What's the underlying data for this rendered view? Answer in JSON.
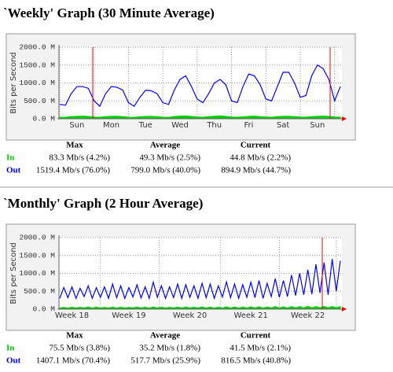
{
  "chart_data": [
    {
      "type": "line",
      "title": "`Weekly' Graph (30 Minute Average)",
      "y_label": "Bits per Second",
      "categories": [
        null,
        null,
        null,
        "Sun",
        null,
        null,
        null,
        null,
        null,
        "Mon",
        null,
        null,
        null,
        null,
        null,
        "Tue",
        null,
        null,
        null,
        null,
        null,
        "Wed",
        null,
        null,
        null,
        null,
        null,
        "Thu",
        null,
        null,
        null,
        null,
        null,
        "Fri",
        null,
        null,
        null,
        null,
        null,
        "Sat",
        null,
        null,
        null,
        null,
        null,
        "Sun",
        null,
        null,
        null,
        null
      ],
      "ylim": [
        0,
        2000
      ],
      "yticks": [
        {
          "value": 0,
          "label": "0.0 M"
        },
        {
          "value": 500,
          "label": "500.0 M"
        },
        {
          "value": 1000,
          "label": "1000.0 M"
        },
        {
          "value": 1500,
          "label": "1500.0 M"
        },
        {
          "value": 2000,
          "label": "2000.0 M"
        }
      ],
      "grid": true,
      "series": [
        {
          "name": "In",
          "color": "#00cc00",
          "values": [
            40,
            45,
            60,
            70,
            75,
            65,
            50,
            45,
            60,
            70,
            72,
            60,
            45,
            40,
            55,
            65,
            70,
            60,
            45,
            42,
            60,
            75,
            80,
            65,
            50,
            45,
            60,
            72,
            83,
            65,
            50,
            45,
            55,
            70,
            75,
            60,
            50,
            45,
            60,
            70,
            72,
            60,
            50,
            48,
            60,
            70,
            75,
            65,
            50,
            48
          ]
        },
        {
          "name": "Out",
          "color": "#0000ff",
          "values": [
            400,
            380,
            700,
            900,
            900,
            850,
            500,
            350,
            700,
            900,
            880,
            800,
            450,
            350,
            600,
            800,
            780,
            700,
            450,
            400,
            800,
            1100,
            1200,
            900,
            550,
            450,
            700,
            1000,
            1100,
            950,
            500,
            450,
            900,
            1250,
            1200,
            950,
            550,
            500,
            900,
            1300,
            1300,
            1000,
            600,
            650,
            1200,
            1500,
            1400,
            1100,
            500,
            900
          ]
        }
      ],
      "stats": {
        "columns": [
          "Max",
          "Average",
          "Current"
        ],
        "rows": [
          [
            "83.3 Mb/s (4.2%)",
            "49.3 Mb/s (2.5%)",
            "44.8 Mb/s (2.2%)"
          ],
          [
            "1519.4 Mb/s (76.0%)",
            "799.0 Mb/s (40.0%)",
            "894.9 Mb/s (44.7%)"
          ]
        ]
      }
    },
    {
      "type": "line",
      "title": "`Monthly' Graph (2 Hour Average)",
      "y_label": "Bits per Second",
      "categories": [
        null,
        null,
        null,
        "Week 18",
        null,
        null,
        null,
        null,
        null,
        null,
        null,
        null,
        null,
        null,
        null,
        null,
        null,
        "Week 19",
        null,
        null,
        null,
        null,
        null,
        null,
        null,
        null,
        null,
        null,
        null,
        null,
        null,
        null,
        "Week 20",
        null,
        null,
        null,
        null,
        null,
        null,
        null,
        null,
        null,
        null,
        null,
        null,
        null,
        null,
        "Week 21",
        null,
        null,
        null,
        null,
        null,
        null,
        null,
        null,
        null,
        null,
        null,
        null,
        null,
        "Week 22",
        null,
        null,
        null,
        null,
        null,
        null,
        null,
        null
      ],
      "ylim": [
        0,
        2000
      ],
      "yticks": [
        {
          "value": 0,
          "label": "0.0 M"
        },
        {
          "value": 500,
          "label": "500.0 M"
        },
        {
          "value": 1000,
          "label": "1000.0 M"
        },
        {
          "value": 1500,
          "label": "1500.0 M"
        },
        {
          "value": 2000,
          "label": "2000.0 M"
        }
      ],
      "grid": true,
      "series": [
        {
          "name": "In",
          "color": "#00cc00",
          "values": [
            30,
            50,
            28,
            55,
            30,
            52,
            32,
            60,
            30,
            55,
            32,
            50,
            30,
            58,
            28,
            55,
            30,
            50,
            32,
            60,
            30,
            55,
            28,
            62,
            30,
            55,
            30,
            52,
            32,
            58,
            30,
            60,
            32,
            55,
            30,
            62,
            30,
            58,
            28,
            55,
            32,
            65,
            30,
            60,
            30,
            58,
            32,
            62,
            30,
            66,
            28,
            60,
            32,
            70,
            30,
            65,
            32,
            72,
            34,
            70,
            36,
            75,
            35,
            72,
            38,
            75.5,
            36,
            74,
            40,
            70
          ]
        },
        {
          "name": "Out",
          "color": "#0000ff",
          "values": [
            300,
            600,
            320,
            620,
            300,
            580,
            350,
            650,
            300,
            600,
            330,
            620,
            300,
            700,
            320,
            650,
            300,
            600,
            340,
            680,
            310,
            620,
            300,
            750,
            330,
            650,
            300,
            620,
            320,
            700,
            300,
            680,
            330,
            650,
            300,
            720,
            320,
            700,
            300,
            650,
            340,
            760,
            320,
            700,
            300,
            680,
            330,
            750,
            320,
            800,
            300,
            720,
            350,
            850,
            330,
            800,
            350,
            950,
            380,
            1000,
            400,
            1100,
            420,
            1250,
            450,
            1300,
            400,
            1400,
            500,
            1350
          ]
        }
      ],
      "stats": {
        "columns": [
          "Max",
          "Average",
          "Current"
        ],
        "rows": [
          [
            "75.5 Mb/s (3.8%)",
            "35.2 Mb/s (1.8%)",
            "41.5 Mb/s (2.1%)"
          ],
          [
            "1407.1 Mb/s (70.4%)",
            "517.7 Mb/s (25.9%)",
            "816.5 Mb/s (40.8%)"
          ]
        ]
      }
    }
  ]
}
